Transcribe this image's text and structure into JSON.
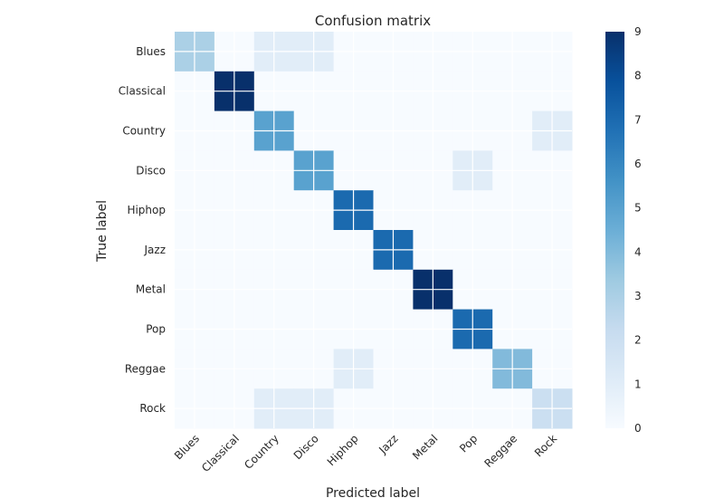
{
  "chart_data": {
    "type": "heatmap",
    "title": "Confusion matrix",
    "xlabel": "Predicted label",
    "ylabel": "True label",
    "x_categories": [
      "Blues",
      "Classical",
      "Country",
      "Disco",
      "Hiphop",
      "Jazz",
      "Metal",
      "Pop",
      "Reggae",
      "Rock"
    ],
    "y_categories": [
      "Blues",
      "Classical",
      "Country",
      "Disco",
      "Hiphop",
      "Jazz",
      "Metal",
      "Pop",
      "Reggae",
      "Rock"
    ],
    "values": [
      [
        3,
        0,
        1,
        1,
        0,
        0,
        0,
        0,
        0,
        0
      ],
      [
        0,
        9,
        0,
        0,
        0,
        0,
        0,
        0,
        0,
        0
      ],
      [
        0,
        0,
        5,
        0,
        0,
        0,
        0,
        0,
        0,
        1
      ],
      [
        0,
        0,
        0,
        5,
        0,
        0,
        0,
        1,
        0,
        0
      ],
      [
        0,
        0,
        0,
        0,
        7,
        0,
        0,
        0,
        0,
        0
      ],
      [
        0,
        0,
        0,
        0,
        0,
        7,
        0,
        0,
        0,
        0
      ],
      [
        0,
        0,
        0,
        0,
        0,
        0,
        9,
        0,
        0,
        0
      ],
      [
        0,
        0,
        0,
        0,
        0,
        0,
        0,
        7,
        0,
        0
      ],
      [
        0,
        0,
        0,
        0,
        1,
        0,
        0,
        0,
        4,
        0
      ],
      [
        0,
        0,
        1,
        1,
        0,
        0,
        0,
        0,
        0,
        2
      ]
    ],
    "colorbar": {
      "min": 0,
      "max": 9,
      "ticks": [
        0,
        1,
        2,
        3,
        4,
        5,
        6,
        7,
        8,
        9
      ],
      "colormap": "Blues"
    },
    "grid": true
  }
}
